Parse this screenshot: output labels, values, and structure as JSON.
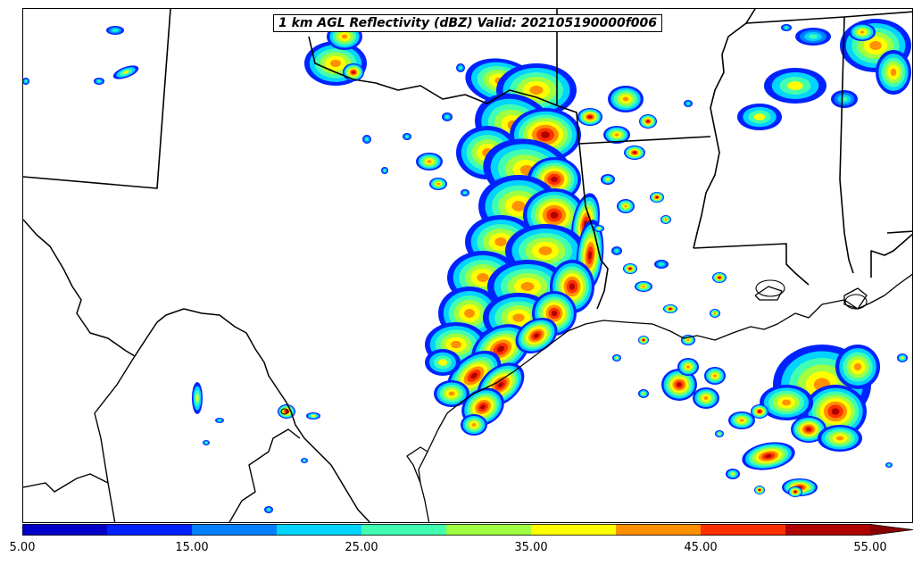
{
  "title": "1 km AGL Reflectivity (dBZ) Valid: 202105190000f006",
  "colorbar": {
    "segments": [
      {
        "from": 5,
        "to": 10,
        "color": "#0000c8"
      },
      {
        "from": 10,
        "to": 15,
        "color": "#0022ff"
      },
      {
        "from": 15,
        "to": 20,
        "color": "#0080ff"
      },
      {
        "from": 20,
        "to": 25,
        "color": "#00d4ff"
      },
      {
        "from": 25,
        "to": 30,
        "color": "#40ffb0"
      },
      {
        "from": 30,
        "to": 35,
        "color": "#a0ff40"
      },
      {
        "from": 35,
        "to": 40,
        "color": "#ffff00"
      },
      {
        "from": 40,
        "to": 45,
        "color": "#ff9000"
      },
      {
        "from": 45,
        "to": 50,
        "color": "#ff3000"
      },
      {
        "from": 50,
        "to": 55,
        "color": "#b00000"
      }
    ],
    "extend_color": "#8a0000",
    "tick_labels": [
      "5.00",
      "15.00",
      "25.00",
      "35.00",
      "45.00",
      "55.00"
    ],
    "min": 5,
    "max": 55
  }
}
